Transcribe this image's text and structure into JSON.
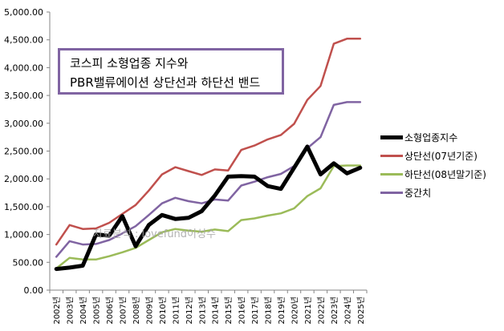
{
  "chart_data": {
    "type": "line",
    "title": "코스피 소형업종 지수와 PBR밸류에이션 상단선과 하단선 밴드",
    "title_lines": [
      "코스피 소형업종 지수와",
      "PBR밸류에이션 상단선과 하단선 밴드"
    ],
    "xlabel": "",
    "ylabel": "",
    "ylim": [
      0,
      5000
    ],
    "yticks": [
      "5,000.00",
      "4,500.00",
      "4,000.00",
      "3,500.00",
      "3,000.00",
      "2,500.00",
      "2,000.00",
      "1,500.00",
      "1,000.00",
      "500.00",
      "0.00"
    ],
    "categories": [
      "2002년",
      "2003년",
      "2004년",
      "2005년",
      "2006년",
      "2007년",
      "2008년",
      "2009년",
      "2010년",
      "2011년",
      "2012년",
      "2013년",
      "2014년",
      "2015년",
      "2016년",
      "2017년",
      "2018년",
      "2019년",
      "2020년",
      "2021년",
      "2022년",
      "2023년",
      "2024년",
      "2025년"
    ],
    "grid": false,
    "legend_position": "right",
    "series": [
      {
        "name": "소형업종지수",
        "color": "#000000",
        "width": 5,
        "values": [
          380,
          405,
          440,
          1000,
          980,
          1330,
          790,
          1170,
          1350,
          1280,
          1300,
          1420,
          1700,
          2040,
          2050,
          2040,
          1870,
          1820,
          2200,
          2580,
          2080,
          2280,
          2100,
          2200
        ]
      },
      {
        "name": "상단선(07년기준)",
        "color": "#c0504d",
        "width": 2.5,
        "values": [
          820,
          1170,
          1100,
          1110,
          1210,
          1370,
          1530,
          1790,
          2080,
          2210,
          2140,
          2070,
          2170,
          2150,
          2520,
          2600,
          2710,
          2790,
          2990,
          3420,
          3670,
          4430,
          4520,
          4520
        ]
      },
      {
        "name": "하단선(08년말기준)",
        "color": "#9bbb59",
        "width": 2.5,
        "values": [
          390,
          580,
          550,
          550,
          610,
          680,
          760,
          900,
          1040,
          1100,
          1070,
          1050,
          1090,
          1060,
          1260,
          1290,
          1340,
          1380,
          1470,
          1690,
          1830,
          2230,
          2240,
          2240
        ]
      },
      {
        "name": "중간치",
        "color": "#8064a2",
        "width": 2.5,
        "values": [
          600,
          880,
          820,
          830,
          900,
          1020,
          1150,
          1350,
          1560,
          1660,
          1600,
          1560,
          1630,
          1610,
          1880,
          1950,
          2030,
          2090,
          2230,
          2550,
          2750,
          3330,
          3380,
          3380
        ]
      }
    ],
    "annotations": [
      "자료분석 : lovefund이성수"
    ]
  },
  "title_box": {
    "line1": "코스피 소형업종 지수와",
    "line2": "PBR밸류에이션 상단선과 하단선 밴드"
  },
  "legend": {
    "items": [
      {
        "label": "소형업종지수",
        "color": "#000000"
      },
      {
        "label": "상단선(07년기준)",
        "color": "#c0504d"
      },
      {
        "label": "하단선(08년말기준)",
        "color": "#9bbb59"
      },
      {
        "label": "중간치",
        "color": "#8064a2"
      }
    ]
  },
  "watermark": "자료분석 : lovefund이성수"
}
